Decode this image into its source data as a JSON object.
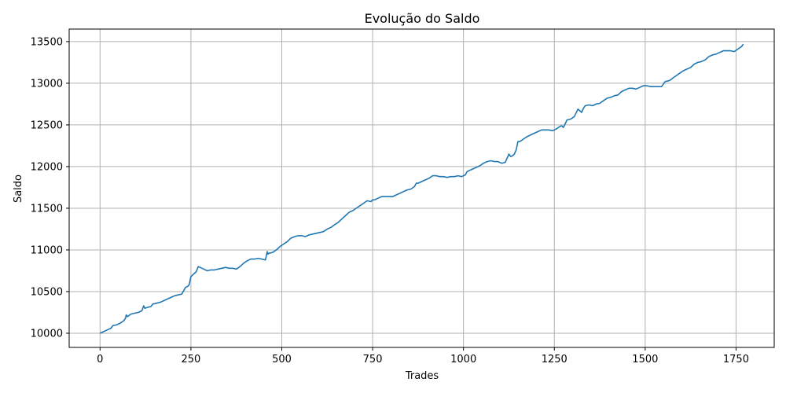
{
  "chart_data": {
    "type": "line",
    "title": "Evolução do Saldo",
    "xlabel": "Trades",
    "ylabel": "Saldo",
    "xlim": [
      -85,
      1855
    ],
    "ylim": [
      9830,
      13650
    ],
    "xticks": [
      0,
      250,
      500,
      750,
      1000,
      1250,
      1500,
      1750
    ],
    "yticks": [
      10000,
      10500,
      11000,
      11500,
      12000,
      12500,
      13000,
      13500
    ],
    "grid": true,
    "line_color": "#1f77b4",
    "series": [
      {
        "x": [
          0,
          10,
          20,
          30,
          35,
          45,
          55,
          65,
          70,
          72,
          75,
          85,
          95,
          105,
          115,
          120,
          123,
          130,
          140,
          145,
          155,
          165,
          175,
          185,
          195,
          205,
          215,
          225,
          235,
          240,
          245,
          250,
          255,
          260,
          265,
          270,
          275,
          285,
          295,
          305,
          315,
          325,
          335,
          345,
          355,
          365,
          375,
          385,
          395,
          405,
          415,
          425,
          435,
          445,
          455,
          460,
          462,
          465,
          475,
          485,
          495,
          505,
          515,
          525,
          535,
          545,
          555,
          565,
          575,
          585,
          595,
          605,
          615,
          625,
          635,
          645,
          655,
          665,
          675,
          685,
          695,
          705,
          715,
          725,
          735,
          745,
          750,
          755,
          765,
          775,
          785,
          795,
          805,
          815,
          825,
          835,
          845,
          855,
          865,
          870,
          875,
          885,
          895,
          905,
          915,
          925,
          935,
          945,
          955,
          965,
          975,
          985,
          995,
          1005,
          1010,
          1015,
          1025,
          1035,
          1045,
          1055,
          1065,
          1075,
          1085,
          1095,
          1105,
          1115,
          1125,
          1130,
          1135,
          1140,
          1145,
          1150,
          1155,
          1165,
          1175,
          1185,
          1195,
          1205,
          1215,
          1225,
          1235,
          1245,
          1255,
          1265,
          1270,
          1275,
          1285,
          1295,
          1305,
          1315,
          1325,
          1330,
          1335,
          1345,
          1355,
          1365,
          1375,
          1385,
          1395,
          1405,
          1415,
          1425,
          1435,
          1445,
          1455,
          1465,
          1475,
          1485,
          1495,
          1505,
          1515,
          1525,
          1535,
          1545,
          1555,
          1565,
          1570,
          1575,
          1585,
          1595,
          1605,
          1615,
          1625,
          1635,
          1645,
          1655,
          1665,
          1675,
          1685,
          1695,
          1705,
          1715,
          1725,
          1735,
          1745,
          1755,
          1765,
          1770
        ],
        "y": [
          10000,
          10020,
          10040,
          10060,
          10090,
          10100,
          10120,
          10150,
          10180,
          10220,
          10200,
          10230,
          10240,
          10250,
          10270,
          10330,
          10300,
          10310,
          10320,
          10350,
          10360,
          10370,
          10390,
          10410,
          10430,
          10450,
          10460,
          10470,
          10550,
          10560,
          10580,
          10680,
          10700,
          10720,
          10740,
          10800,
          10790,
          10770,
          10750,
          10760,
          10760,
          10770,
          10780,
          10790,
          10780,
          10780,
          10770,
          10800,
          10840,
          10870,
          10890,
          10890,
          10900,
          10890,
          10880,
          10980,
          10950,
          10960,
          10970,
          11000,
          11040,
          11070,
          11100,
          11140,
          11160,
          11170,
          11170,
          11160,
          11180,
          11190,
          11200,
          11210,
          11220,
          11250,
          11270,
          11300,
          11330,
          11370,
          11410,
          11450,
          11470,
          11500,
          11530,
          11560,
          11590,
          11580,
          11600,
          11600,
          11620,
          11640,
          11640,
          11640,
          11640,
          11660,
          11680,
          11700,
          11720,
          11730,
          11760,
          11800,
          11800,
          11820,
          11840,
          11860,
          11890,
          11890,
          11880,
          11880,
          11870,
          11880,
          11880,
          11890,
          11880,
          11900,
          11940,
          11950,
          11970,
          11990,
          12010,
          12040,
          12060,
          12070,
          12060,
          12060,
          12040,
          12050,
          12150,
          12120,
          12130,
          12150,
          12200,
          12300,
          12300,
          12330,
          12360,
          12380,
          12400,
          12420,
          12440,
          12440,
          12440,
          12430,
          12450,
          12480,
          12490,
          12470,
          12560,
          12570,
          12600,
          12690,
          12650,
          12700,
          12730,
          12740,
          12730,
          12750,
          12760,
          12790,
          12820,
          12830,
          12850,
          12860,
          12900,
          12920,
          12940,
          12940,
          12930,
          12950,
          12970,
          12970,
          12960,
          12960,
          12960,
          12960,
          13020,
          13030,
          13040,
          13060,
          13090,
          13120,
          13150,
          13170,
          13190,
          13230,
          13250,
          13260,
          13280,
          13320,
          13340,
          13350,
          13370,
          13390,
          13390,
          13390,
          13380,
          13410,
          13440,
          13470
        ]
      }
    ]
  }
}
